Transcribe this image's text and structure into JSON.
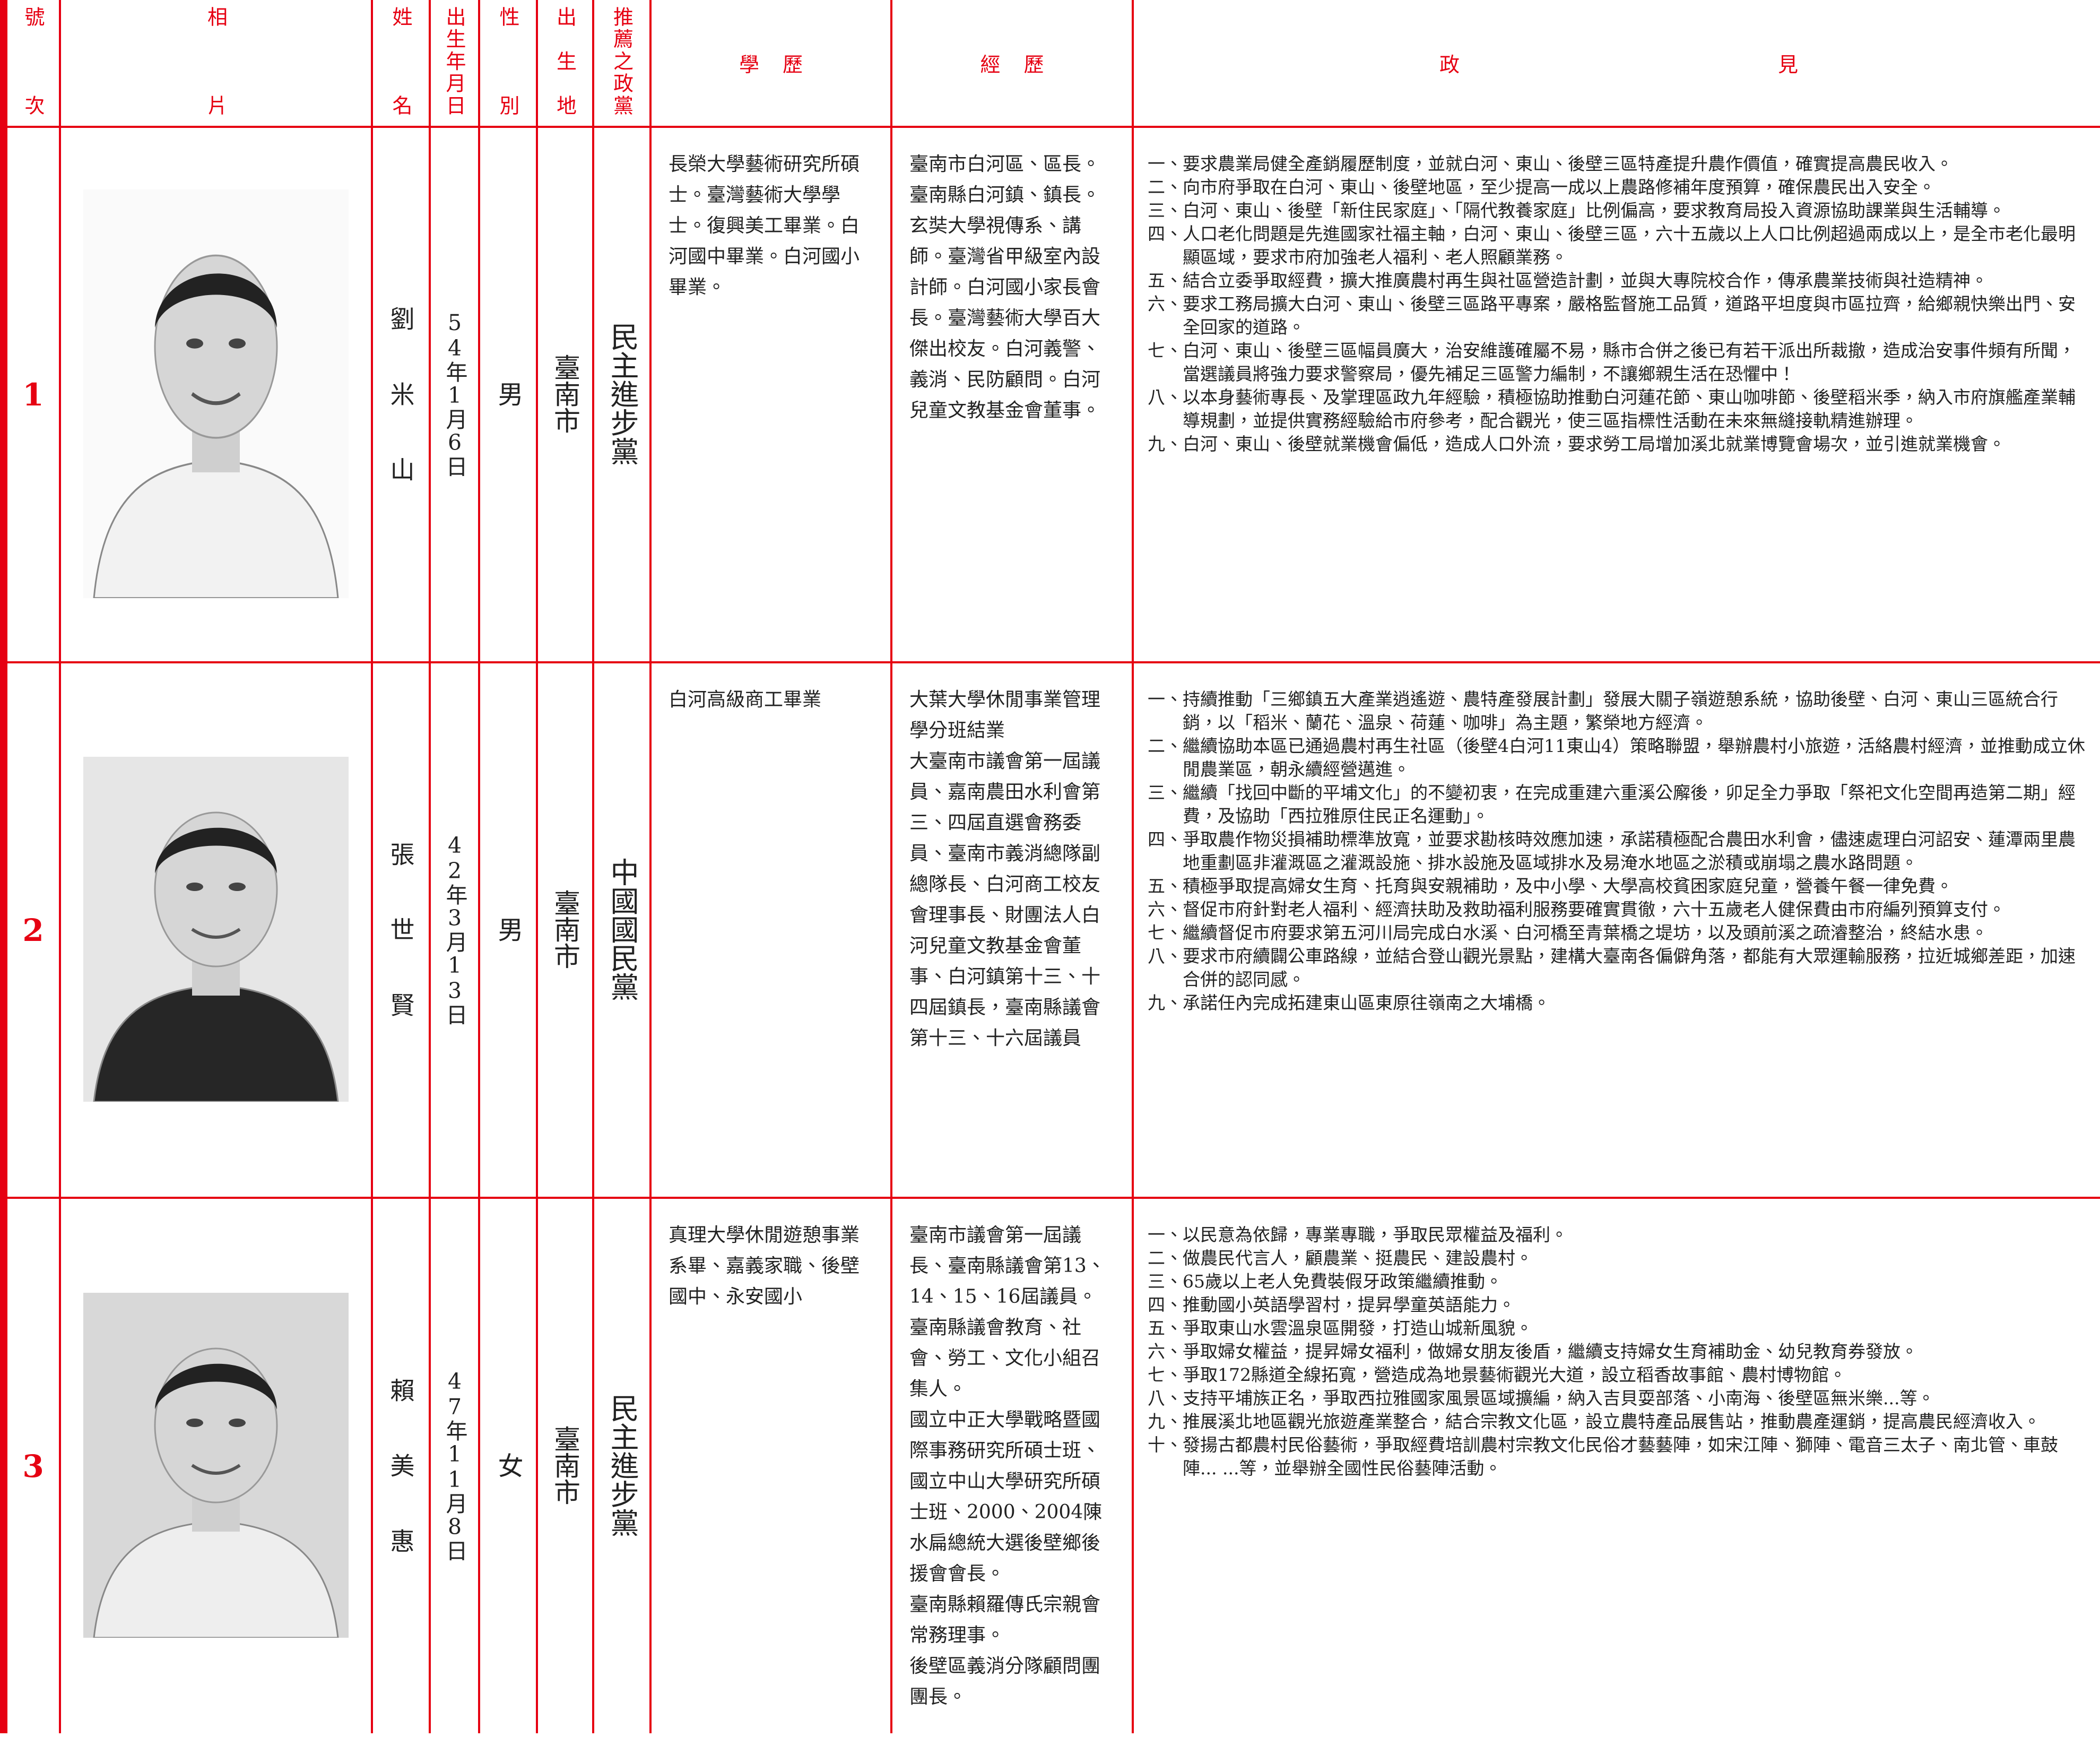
{
  "header": {
    "number": "號次",
    "photo": "相片",
    "name": "姓名",
    "birth": "出生年月日",
    "gender": "性別",
    "birthplace": "出生地",
    "party": "推薦之政黨",
    "education": "學歷",
    "experience": "經歷",
    "policy": "政見"
  },
  "candidates": [
    {
      "number": "1",
      "name": "劉米山",
      "birth": "54年1月6日",
      "gender": "男",
      "birthplace": "臺南市",
      "party": "民主進步黨",
      "education": [
        "長榮大學藝術研究所碩士。臺灣藝術大學學士。復興美工畢業。白河國中畢業。白河國小畢業。"
      ],
      "experience": [
        "臺南市白河區、區長。臺南縣白河鎮、鎮長。玄奘大學視傳系、講師。臺灣省甲級室內設計師。白河國小家長會長。臺灣藝術大學百大傑出校友。白河義警、義消、民防顧問。白河兒童文教基金會董事。"
      ],
      "policies": [
        "一、要求農業局健全產銷履歷制度，並就白河、東山、後壁三區特產提升農作價值，確實提高農民收入。",
        "二、向市府爭取在白河、東山、後壁地區，至少提高一成以上農路修補年度預算，確保農民出入安全。",
        "三、白河、東山、後壁「新住民家庭」、「隔代教養家庭」比例偏高，要求教育局投入資源協助課業與生活輔導。",
        "四、人口老化問題是先進國家社福主軸，白河、東山、後壁三區，六十五歲以上人口比例超過兩成以上，是全市老化最明顯區域，要求市府加強老人福利、老人照顧業務。",
        "五、結合立委爭取經費，擴大推廣農村再生與社區營造計劃，並與大專院校合作，傳承農業技術與社造精神。",
        "六、要求工務局擴大白河、東山、後壁三區路平專案，嚴格監督施工品質，道路平坦度與市區拉齊，給鄉親快樂出門、安全回家的道路。",
        "七、白河、東山、後壁三區幅員廣大，治安維護確屬不易，縣市合併之後已有若干派出所裁撤，造成治安事件頻有所聞，當選議員將強力要求警察局，優先補足三區警力編制，不讓鄉親生活在恐懼中！",
        "八、以本身藝術專長、及掌理區政九年經驗，積極協助推動白河蓮花節、東山咖啡節、後壁稻米季，納入市府旗艦產業輔導規劃，並提供實務經驗給市府參考，配合觀光，使三區指標性活動在未來無縫接軌精進辦理。",
        "九、白河、東山、後壁就業機會偏低，造成人口外流，要求勞工局增加溪北就業博覽會場次，並引進就業機會。"
      ]
    },
    {
      "number": "2",
      "name": "張世賢",
      "birth": "42年3月13日",
      "gender": "男",
      "birthplace": "臺南市",
      "party": "中國國民黨",
      "education": [
        "白河高級商工畢業"
      ],
      "experience": [
        "大葉大學休閒事業管理學分班結業",
        "大臺南市議會第一屆議員、嘉南農田水利會第三、四屆直選會務委員、臺南市義消總隊副總隊長、白河商工校友會理事長、財團法人白河兒童文教基金會董事、白河鎮第十三、十四屆鎮長，臺南縣議會第十三、十六屆議員"
      ],
      "policies": [
        "一、持續推動「三鄉鎮五大產業逍遙遊、農特產發展計劃」發展大關子嶺遊憩系統，協助後壁、白河、東山三區統合行銷，以「稻米、蘭花、溫泉、荷蓮、咖啡」為主題，繁榮地方經濟。",
        "二、繼續協助本區已通過農村再生社區（後壁4白河11東山4）策略聯盟，舉辦農村小旅遊，活絡農村經濟，並推動成立休閒農業區，朝永續經營邁進。",
        "三、繼續「找回中斷的平埔文化」的不變初衷，在完成重建六重溪公廨後，卯足全力爭取「祭祀文化空間再造第二期」經費，及協助「西拉雅原住民正名運動」。",
        "四、爭取農作物災損補助標準放寬，並要求勘核時效應加速，承諾積極配合農田水利會，儘速處理白河詔安、蓮潭兩里農地重劃區非灌溉區之灌溉設施、排水設施及區域排水及易淹水地區之淤積或崩塌之農水路問題。",
        "五、積極爭取提高婦女生育、托育與安親補助，及中小學、大學高校貧困家庭兒童，營養午餐一律免費。",
        "六、督促市府針對老人福利、經濟扶助及救助福利服務要確實貫徹，六十五歲老人健保費由市府編列預算支付。",
        "七、繼續督促市府要求第五河川局完成白水溪、白河橋至青葉橋之堤坊，以及頭前溪之疏濬整治，終結水患。",
        "八、要求市府續闢公車路線，並結合登山觀光景點，建構大臺南各偏僻角落，都能有大眾運輸服務，拉近城鄉差距，加速合併的認同感。",
        "九、承諾任內完成拓建東山區東原往嶺南之大埔橋。"
      ]
    },
    {
      "number": "3",
      "name": "賴美惠",
      "birth": "47年11月8日",
      "gender": "女",
      "birthplace": "臺南市",
      "party": "民主進步黨",
      "education": [
        "真理大學休閒遊憩事業系畢、嘉義家職、後壁國中、永安國小"
      ],
      "experience": [
        "臺南市議會第一屆議長、臺南縣議會第13、14、15、16屆議員。",
        "臺南縣議會教育、社會、勞工、文化小組召集人。",
        "國立中正大學戰略暨國際事務研究所碩士班、國立中山大學研究所碩士班、2000、2004陳水扁總統大選後壁鄉後援會會長。",
        "臺南縣賴羅傳氏宗親會常務理事。",
        "後壁區義消分隊顧問團團長。"
      ],
      "policies": [
        "一、以民意為依歸，專業專職，爭取民眾權益及福利。",
        "二、做農民代言人，顧農業、挺農民、建設農村。",
        "三、65歲以上老人免費裝假牙政策繼續推動。",
        "四、推動國小英語學習村，提昇學童英語能力。",
        "五、爭取東山水雲溫泉區開發，打造山城新風貌。",
        "六、爭取婦女權益，提昇婦女福利，做婦女朋友後盾，繼續支持婦女生育補助金、幼兒教育券發放。",
        "七、爭取172縣道全線拓寬，營造成為地景藝術觀光大道，設立稻香故事館、農村博物館。",
        "八、支持平埔族正名，爭取西拉雅國家風景區域擴編，納入吉貝耍部落、小南海、後壁區無米樂...等。",
        "九、推展溪北地區觀光旅遊產業整合，結合宗教文化區，設立農特產品展售站，推動農產運銷，提高農民經濟收入。",
        "十、發揚古都農村民俗藝術，爭取經費培訓農村宗教文化民俗才藝藝陣，如宋江陣、獅陣、電音三太子、南北管、車鼓陣... ...等，並舉辦全國性民俗藝陣活動。"
      ]
    }
  ]
}
